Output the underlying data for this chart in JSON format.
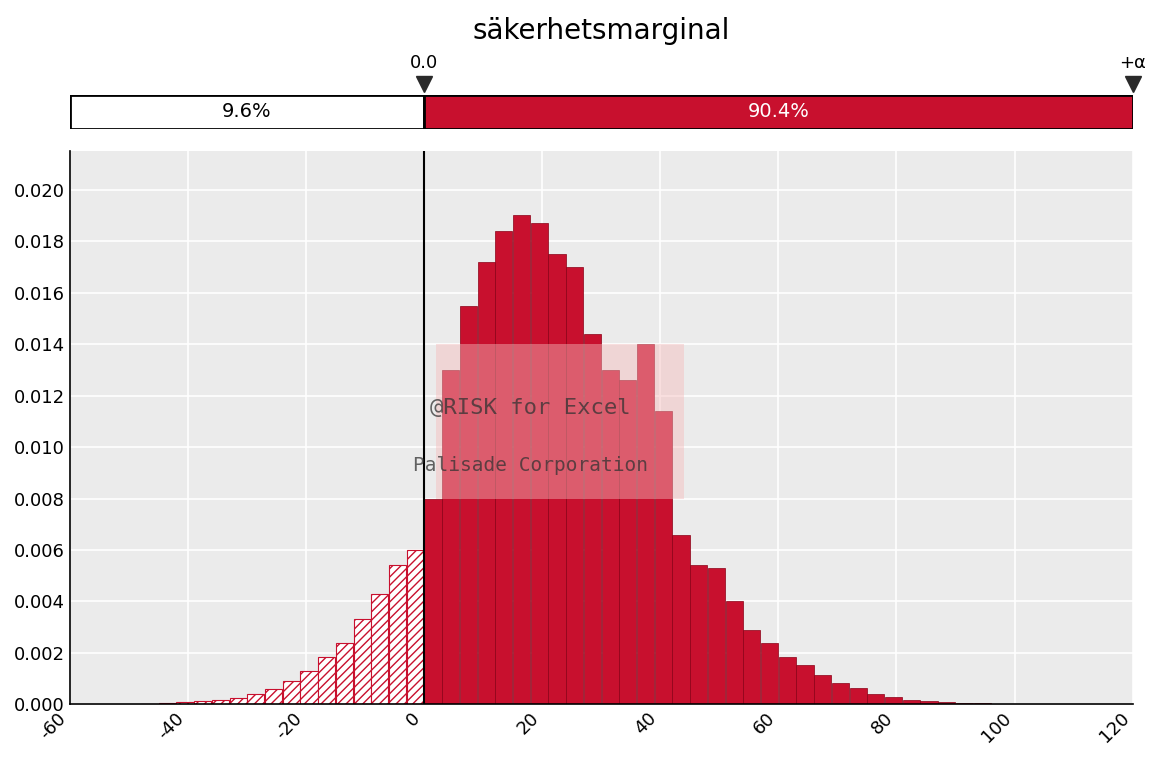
{
  "title": "säkerhetsmarginal",
  "xlim": [
    -60,
    120
  ],
  "ylim": [
    0,
    0.0215
  ],
  "threshold": 0.0,
  "left_pct": "9.6%",
  "right_pct": "90.4%",
  "left_label": "0.0",
  "right_label": "+α",
  "bar_color_solid": "#C8102E",
  "hatch_pattern": "////",
  "background_color": "#EBEBEB",
  "watermark_line1": "@RISK for Excel",
  "watermark_line2": "Palisade Corporation",
  "bin_edges": [
    -60,
    -57,
    -54,
    -51,
    -48,
    -45,
    -42,
    -39,
    -36,
    -33,
    -30,
    -27,
    -24,
    -21,
    -18,
    -15,
    -12,
    -9,
    -6,
    -3,
    0,
    3,
    6,
    9,
    12,
    15,
    18,
    21,
    24,
    27,
    30,
    33,
    36,
    39,
    42,
    45,
    48,
    51,
    54,
    57,
    60,
    63,
    66,
    69,
    72,
    75,
    78,
    81,
    84,
    87,
    90,
    93,
    96,
    99,
    102,
    105,
    108,
    111,
    114,
    117,
    120
  ],
  "bin_heights": [
    0.0,
    0.0,
    0.0,
    0.0,
    2e-05,
    4e-05,
    8e-05,
    0.00012,
    0.00018,
    0.00025,
    0.0004,
    0.0006,
    0.0009,
    0.0013,
    0.00185,
    0.0024,
    0.0033,
    0.0043,
    0.0054,
    0.006,
    0.008,
    0.013,
    0.0155,
    0.0172,
    0.0184,
    0.019,
    0.0187,
    0.0175,
    0.017,
    0.0144,
    0.013,
    0.0126,
    0.014,
    0.0114,
    0.0066,
    0.0054,
    0.0053,
    0.004,
    0.0029,
    0.0024,
    0.00185,
    0.00155,
    0.00115,
    0.00085,
    0.00065,
    0.00042,
    0.00028,
    0.00019,
    0.00012,
    9e-05,
    6e-05,
    4e-05,
    3e-05,
    2e-05,
    1e-05,
    1e-05,
    0.0,
    0.0,
    0.0,
    0.0
  ]
}
